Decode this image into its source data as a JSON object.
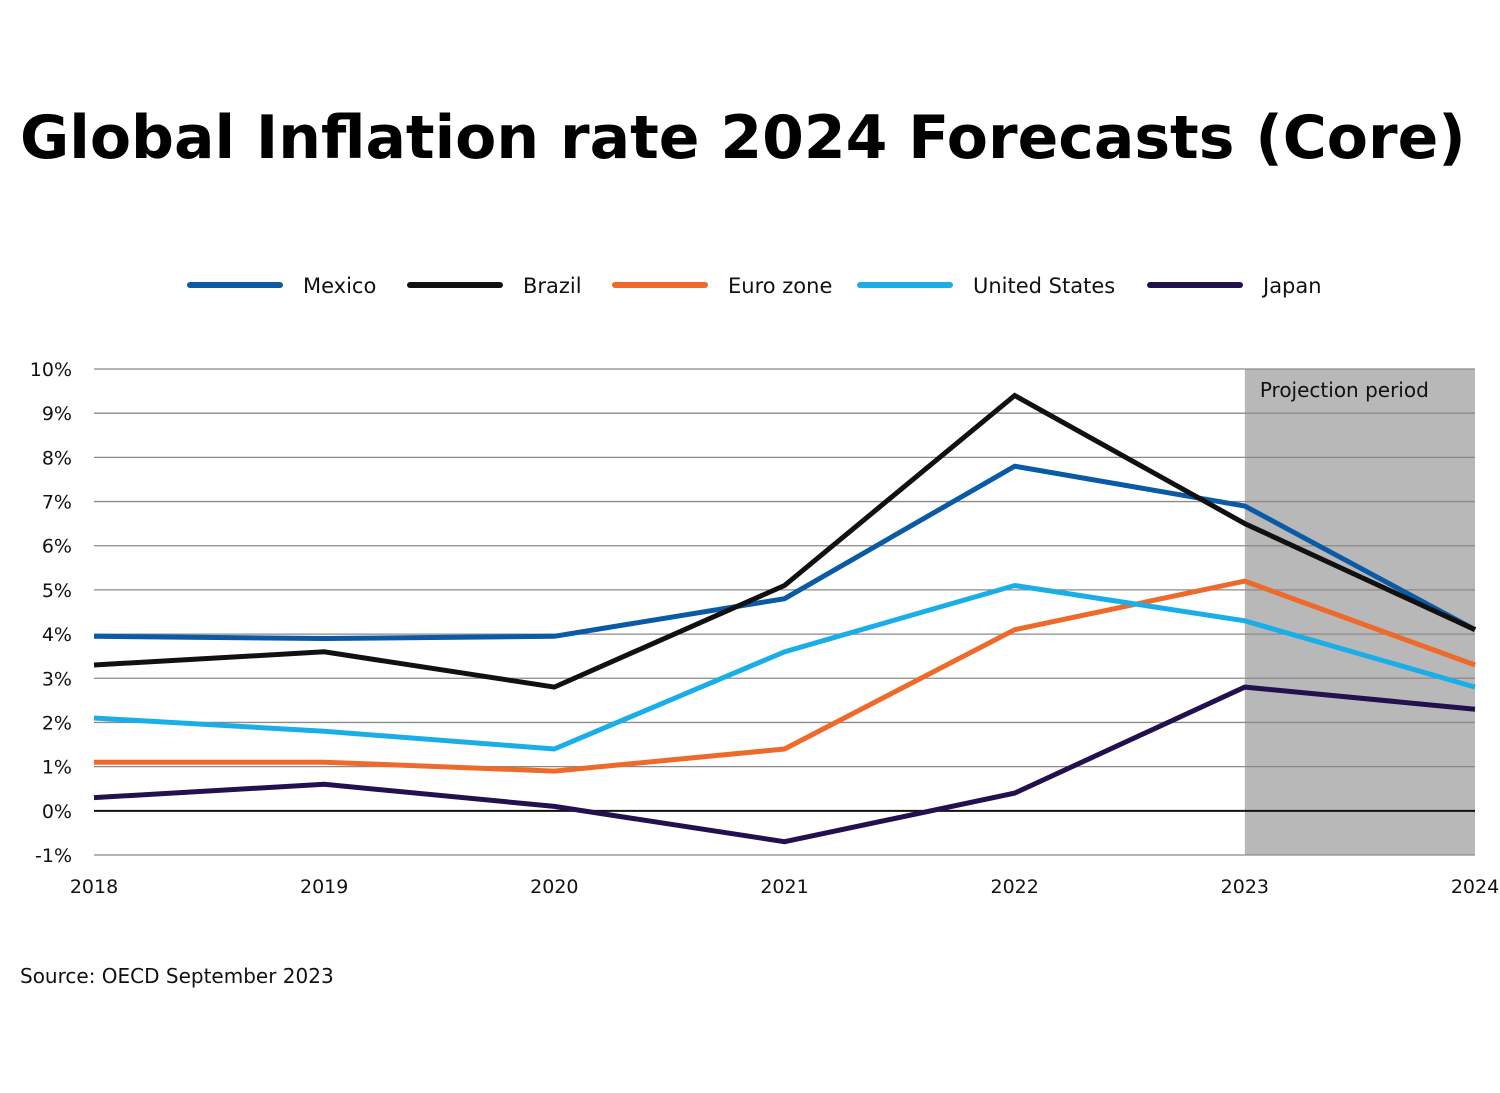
{
  "chart_data": {
    "type": "line",
    "title": "Global Inflation rate 2024 Forecasts (Core)",
    "source": "Source: OECD September 2023",
    "x": [
      "2018",
      "2019",
      "2020",
      "2021",
      "2022",
      "2023",
      "2024"
    ],
    "ylim": [
      -1,
      10
    ],
    "yticks": [
      -1,
      0,
      1,
      2,
      3,
      4,
      5,
      6,
      7,
      8,
      9,
      10
    ],
    "ytick_labels": [
      "-1%",
      "0%",
      "1%",
      "2%",
      "3%",
      "4%",
      "5%",
      "6%",
      "7%",
      "8%",
      "9%",
      "10%"
    ],
    "grid": true,
    "legend_position": "top",
    "projection": {
      "label": "Projection period",
      "from": "2023",
      "to": "2024",
      "color": "#b8b8b8"
    },
    "series": [
      {
        "name": "Mexico",
        "color": "#0a5aa6",
        "values": [
          3.95,
          3.9,
          3.95,
          4.8,
          7.8,
          6.9,
          4.1
        ]
      },
      {
        "name": "Brazil",
        "color": "#111111",
        "values": [
          3.3,
          3.6,
          2.8,
          5.1,
          9.4,
          6.5,
          4.1
        ]
      },
      {
        "name": "Euro zone",
        "color": "#ed6a2b",
        "values": [
          1.1,
          1.1,
          0.9,
          1.4,
          4.1,
          5.2,
          3.3
        ]
      },
      {
        "name": "United States",
        "color": "#19aee8",
        "values": [
          2.1,
          1.8,
          1.4,
          3.6,
          5.1,
          4.3,
          2.8
        ]
      },
      {
        "name": "Japan",
        "color": "#23104e",
        "values": [
          0.3,
          0.6,
          0.1,
          -0.7,
          0.4,
          2.8,
          2.3
        ]
      }
    ]
  }
}
